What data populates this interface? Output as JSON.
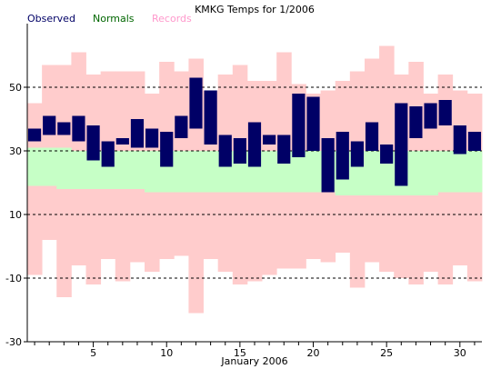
{
  "chart_data": {
    "type": "bar",
    "title": "KMKG Temps for 1/2006",
    "xlabel": "January 2006",
    "ylabel": "",
    "ylim": [
      -30,
      70
    ],
    "xlim": [
      0.5,
      31.5
    ],
    "yticks": [
      -30,
      -10,
      10,
      30,
      50
    ],
    "xticks": [
      5,
      10,
      15,
      20,
      25,
      30
    ],
    "grid": "dashed horizontal lines at -10, 10, 30 and 50",
    "legend_placement": "top-left",
    "days": [
      1,
      2,
      3,
      4,
      5,
      6,
      7,
      8,
      9,
      10,
      11,
      12,
      13,
      14,
      15,
      16,
      17,
      18,
      19,
      20,
      21,
      22,
      23,
      24,
      25,
      26,
      27,
      28,
      29,
      30,
      31
    ],
    "series": [
      {
        "name": "Observed",
        "color": "#000066",
        "low": [
          33,
          35,
          35,
          33,
          27,
          25,
          32,
          31,
          31,
          25,
          34,
          37,
          32,
          25,
          26,
          25,
          32,
          26,
          28,
          30,
          17,
          21,
          25,
          30,
          26,
          19,
          34,
          37,
          38,
          29,
          30
        ],
        "high": [
          37,
          41,
          39,
          41,
          38,
          33,
          34,
          40,
          37,
          36,
          41,
          53,
          49,
          35,
          34,
          39,
          35,
          35,
          48,
          47,
          34,
          36,
          33,
          39,
          32,
          45,
          44,
          45,
          46,
          38,
          36
        ]
      },
      {
        "name": "Normals",
        "color": "#c6ffc6",
        "low": [
          19,
          19,
          18,
          18,
          18,
          18,
          18,
          18,
          17,
          17,
          17,
          17,
          17,
          17,
          17,
          17,
          17,
          17,
          17,
          17,
          17,
          16,
          16,
          16,
          16,
          16,
          16,
          16,
          17,
          17,
          17
        ],
        "high": [
          31,
          31,
          31,
          30,
          30,
          30,
          30,
          30,
          30,
          30,
          30,
          30,
          30,
          30,
          30,
          30,
          30,
          30,
          30,
          30,
          30,
          30,
          30,
          30,
          30,
          30,
          30,
          30,
          30,
          30,
          30
        ]
      },
      {
        "name": "Records",
        "color": "#ffcccc",
        "low": [
          -9,
          2,
          -16,
          -6,
          -12,
          -4,
          -11,
          -5,
          -8,
          -4,
          -3,
          -21,
          -4,
          -8,
          -12,
          -11,
          -9,
          -7,
          -7,
          -4,
          -5,
          -2,
          -13,
          -5,
          -8,
          -10,
          -12,
          -8,
          -12,
          -6,
          -11
        ],
        "high": [
          45,
          57,
          57,
          61,
          54,
          55,
          55,
          55,
          48,
          58,
          55,
          59,
          49,
          54,
          57,
          52,
          52,
          61,
          51,
          48,
          49,
          52,
          55,
          59,
          63,
          54,
          58,
          48,
          54,
          49,
          48
        ]
      }
    ]
  }
}
